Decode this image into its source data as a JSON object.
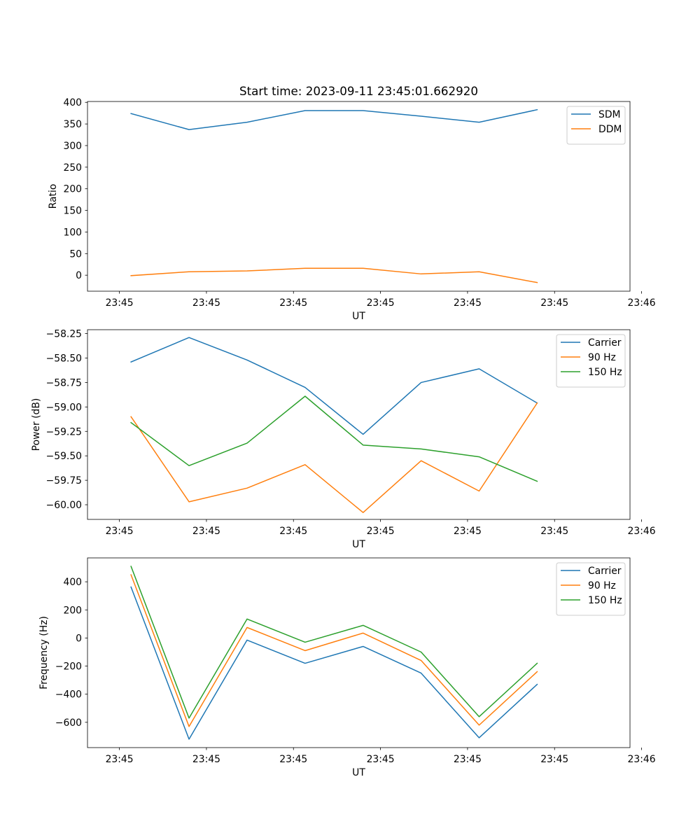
{
  "figure_title": "Start time: 2023-09-11 23:45:01.662920",
  "colors": {
    "blue": "#1f77b4",
    "orange": "#ff7f0e",
    "green": "#2ca02c",
    "axis": "#000000",
    "legend_border": "#cccccc"
  },
  "chart_data": [
    {
      "type": "line",
      "title": "Start time: 2023-09-11 23:45:01.662920",
      "xlabel": "UT",
      "ylabel": "Ratio",
      "x": [
        0,
        1,
        2,
        3,
        4,
        5,
        6,
        7
      ],
      "x_range": [
        -0.75,
        8.6
      ],
      "x_ticks": [
        -0.2,
        1.3,
        2.8,
        4.3,
        5.8,
        7.3,
        8.8
      ],
      "x_tick_labels": [
        "23:45",
        "23:45",
        "23:45",
        "23:45",
        "23:45",
        "23:45",
        "23:46"
      ],
      "y_range": [
        -37,
        402
      ],
      "y_ticks": [
        0,
        50,
        100,
        150,
        200,
        250,
        300,
        350,
        400
      ],
      "y_tick_labels": [
        "0",
        "50",
        "100",
        "150",
        "200",
        "250",
        "300",
        "350",
        "400"
      ],
      "grid": false,
      "legend_position": "top-right",
      "series": [
        {
          "name": "SDM",
          "color": "blue",
          "values": [
            374,
            337,
            354,
            381,
            381,
            368,
            354,
            383
          ]
        },
        {
          "name": "DDM",
          "color": "orange",
          "values": [
            -1,
            8,
            10,
            16,
            16,
            3,
            8,
            -17
          ]
        }
      ]
    },
    {
      "type": "line",
      "title": "",
      "xlabel": "UT",
      "ylabel": "Power (dB)",
      "x": [
        0,
        1,
        2,
        3,
        4,
        5,
        6,
        7
      ],
      "x_range": [
        -0.75,
        8.6
      ],
      "x_ticks": [
        -0.2,
        1.3,
        2.8,
        4.3,
        5.8,
        7.3,
        8.8
      ],
      "x_tick_labels": [
        "23:45",
        "23:45",
        "23:45",
        "23:45",
        "23:45",
        "23:45",
        "23:46"
      ],
      "y_range": [
        -60.15,
        -58.21
      ],
      "y_ticks": [
        -60.0,
        -59.75,
        -59.5,
        -59.25,
        -59.0,
        -58.75,
        -58.5,
        -58.25
      ],
      "y_tick_labels": [
        "−60.00",
        "−59.75",
        "−59.50",
        "−59.25",
        "−59.00",
        "−58.75",
        "−58.50",
        "−58.25"
      ],
      "grid": false,
      "legend_position": "top-right",
      "series": [
        {
          "name": "Carrier",
          "color": "blue",
          "values": [
            -58.54,
            -58.29,
            -58.52,
            -58.8,
            -59.28,
            -58.75,
            -58.61,
            -58.96
          ]
        },
        {
          "name": "90 Hz",
          "color": "orange",
          "values": [
            -59.1,
            -59.97,
            -59.83,
            -59.59,
            -60.08,
            -59.55,
            -59.86,
            -58.96
          ]
        },
        {
          "name": "150 Hz",
          "color": "green",
          "values": [
            -59.16,
            -59.6,
            -59.37,
            -58.89,
            -59.39,
            -59.43,
            -59.51,
            -59.76
          ]
        }
      ]
    },
    {
      "type": "line",
      "title": "",
      "xlabel": "UT",
      "ylabel": "Frequency (Hz)",
      "x": [
        0,
        1,
        2,
        3,
        4,
        5,
        6,
        7
      ],
      "x_range": [
        -0.75,
        8.6
      ],
      "x_ticks": [
        -0.2,
        1.3,
        2.8,
        4.3,
        5.8,
        7.3,
        8.8
      ],
      "x_tick_labels": [
        "23:45",
        "23:45",
        "23:45",
        "23:45",
        "23:45",
        "23:45",
        "23:46"
      ],
      "y_range": [
        -780,
        570
      ],
      "y_ticks": [
        -600,
        -400,
        -200,
        0,
        200,
        400
      ],
      "y_tick_labels": [
        "−600",
        "−400",
        "−200",
        "0",
        "200",
        "400"
      ],
      "grid": false,
      "legend_position": "top-right",
      "series": [
        {
          "name": "Carrier",
          "color": "blue",
          "values": [
            363,
            -720,
            -15,
            -180,
            -60,
            -250,
            -710,
            -330
          ]
        },
        {
          "name": "90 Hz",
          "color": "orange",
          "values": [
            450,
            -630,
            75,
            -90,
            35,
            -160,
            -620,
            -240
          ]
        },
        {
          "name": "150 Hz",
          "color": "green",
          "values": [
            510,
            -570,
            135,
            -30,
            90,
            -100,
            -560,
            -180
          ]
        }
      ]
    }
  ]
}
